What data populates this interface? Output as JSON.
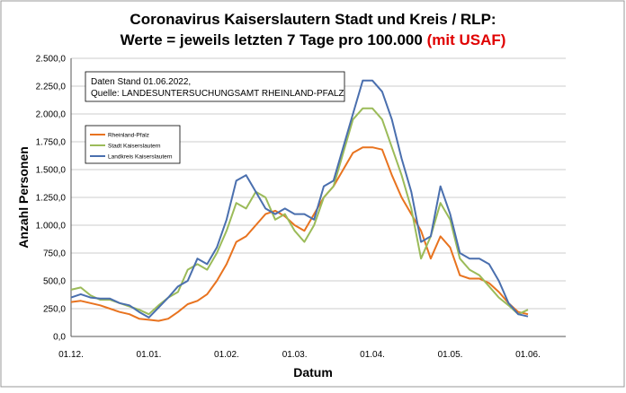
{
  "chart_data": {
    "type": "line",
    "title": [
      "Coronavirus Kaiserslautern Stadt und Kreis / RLP:",
      "Werte = jeweils letzten 7 Tage pro 100.000 ",
      "(mit USAF)"
    ],
    "annotation": [
      "Daten Stand 01.06.2022,",
      "Quelle: LANDESUNTERSUCHUNGSAMT RHEINLAND-PFALZ"
    ],
    "xlabel": "Datum",
    "ylabel": "Anzahl Personen",
    "categories": [
      "01.12.",
      null,
      null,
      null,
      null,
      null,
      null,
      null,
      "01.01.",
      null,
      null,
      null,
      null,
      null,
      null,
      null,
      "01.02.",
      null,
      null,
      null,
      null,
      null,
      null,
      "01.03.",
      null,
      null,
      null,
      null,
      null,
      null,
      null,
      "01.04.",
      null,
      null,
      null,
      null,
      null,
      null,
      null,
      "01.05.",
      null,
      null,
      null,
      null,
      null,
      null,
      null,
      "01.06."
    ],
    "series": [
      {
        "name": "Rheinland-Pfalz",
        "color": "#e8731f",
        "values": [
          310,
          320,
          300,
          280,
          250,
          220,
          200,
          160,
          150,
          140,
          160,
          220,
          290,
          320,
          380,
          500,
          650,
          850,
          900,
          1000,
          1100,
          1130,
          1080,
          1000,
          950,
          1100,
          1250,
          1350,
          1500,
          1650,
          1700,
          1700,
          1680,
          1450,
          1250,
          1100,
          950,
          700,
          900,
          800,
          550,
          520,
          520,
          480,
          400,
          300,
          220,
          200
        ]
      },
      {
        "name": "Stadt Kaiserslautern",
        "color": "#9bbb59",
        "values": [
          420,
          440,
          370,
          330,
          330,
          300,
          270,
          240,
          200,
          280,
          350,
          400,
          600,
          650,
          600,
          750,
          950,
          1200,
          1150,
          1300,
          1250,
          1050,
          1100,
          950,
          850,
          1000,
          1250,
          1350,
          1650,
          1950,
          2050,
          2050,
          1950,
          1700,
          1450,
          1150,
          700,
          900,
          1200,
          1050,
          700,
          600,
          550,
          450,
          350,
          280,
          200,
          240
        ]
      },
      {
        "name": "Landkreis Kaiserslautern",
        "color": "#4a6fae",
        "values": [
          350,
          380,
          350,
          340,
          340,
          300,
          280,
          220,
          170,
          260,
          350,
          450,
          500,
          700,
          650,
          800,
          1050,
          1400,
          1450,
          1300,
          1150,
          1100,
          1150,
          1100,
          1100,
          1050,
          1350,
          1400,
          1700,
          2000,
          2300,
          2300,
          2200,
          1950,
          1600,
          1300,
          850,
          900,
          1350,
          1100,
          750,
          700,
          700,
          650,
          500,
          300,
          200,
          180
        ]
      }
    ],
    "ylim": [
      0,
      2500
    ],
    "yticks": [
      {
        "value": 0,
        "label": "0,0"
      },
      {
        "value": 250,
        "label": "250,0"
      },
      {
        "value": 500,
        "label": "500,0"
      },
      {
        "value": 750,
        "label": "750,0"
      },
      {
        "value": 1000,
        "label": "1.000,0"
      },
      {
        "value": 1250,
        "label": "1.250,0"
      },
      {
        "value": 1500,
        "label": "1.500,0"
      },
      {
        "value": 1750,
        "label": "1.750,0"
      },
      {
        "value": 2000,
        "label": "2.000,0"
      },
      {
        "value": 2250,
        "label": "2.250,0"
      },
      {
        "value": 2500,
        "label": "2.500,0"
      }
    ],
    "grid": true
  }
}
